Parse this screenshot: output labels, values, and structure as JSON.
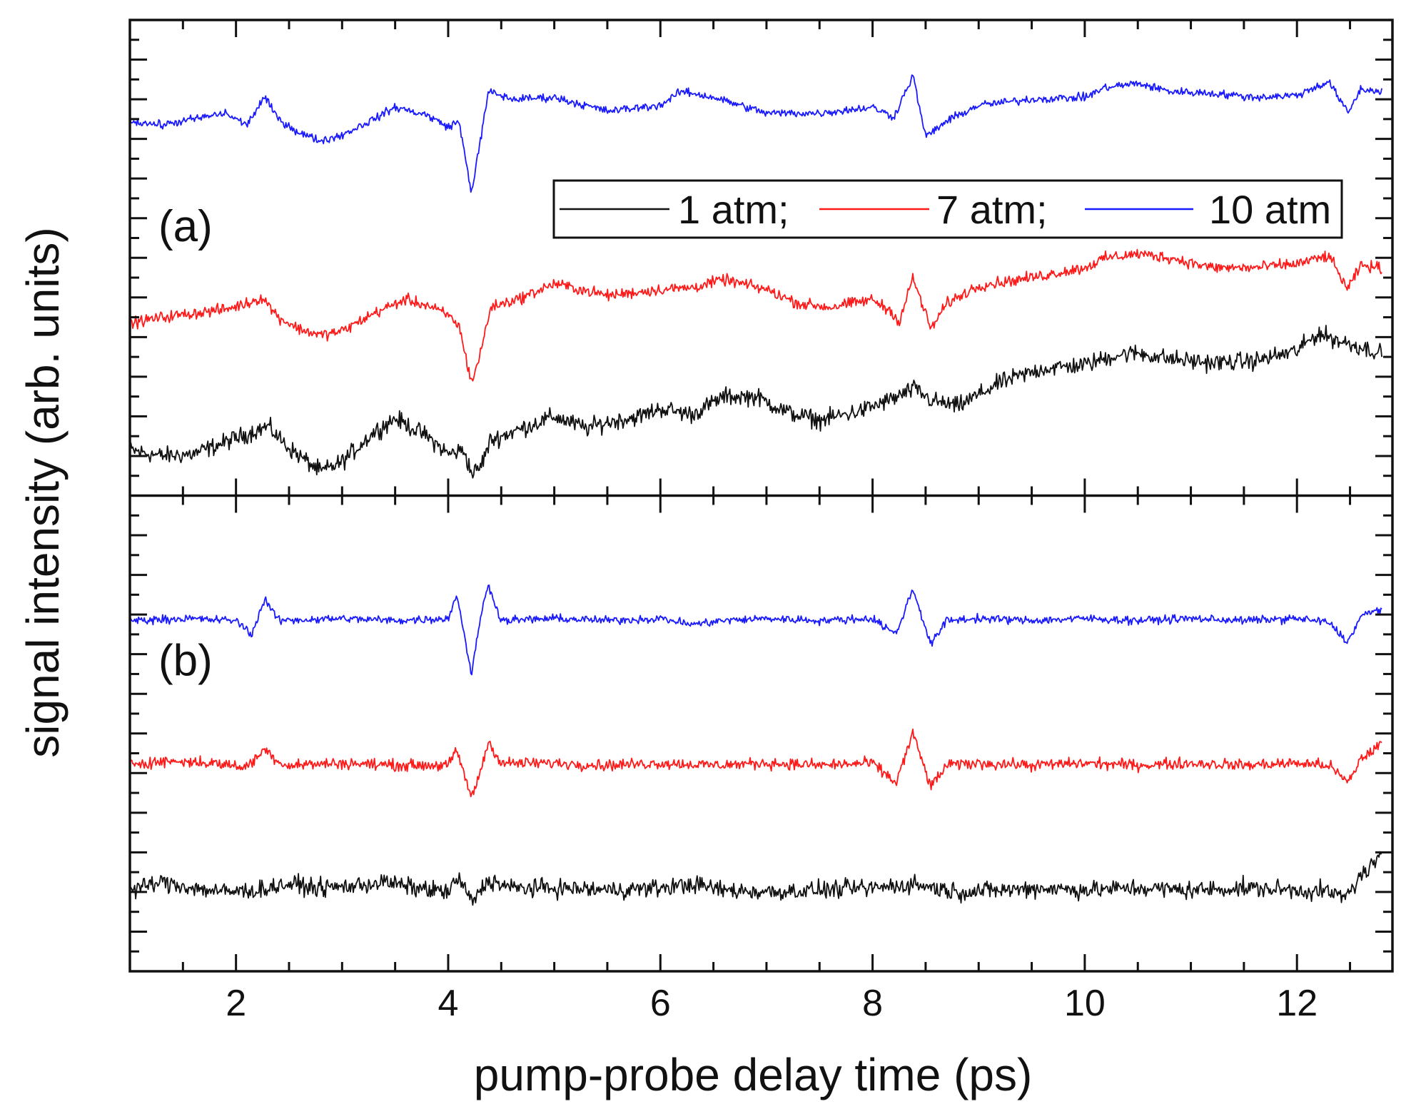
{
  "chart_data": {
    "type": "line",
    "xlabel": "pump-probe delay time (ps)",
    "ylabel": "signal intensity (arb. units)",
    "xlim": [
      1.0,
      12.9
    ],
    "xticks": [
      2,
      4,
      6,
      8,
      10,
      12
    ],
    "xtick_labels": [
      "2",
      "4",
      "6",
      "8",
      "10",
      "12"
    ],
    "ylim": [
      0,
      24
    ],
    "y_tick_labels_shown": false,
    "series_colors": {
      "1 atm": "#111111",
      "7 atm": "#ff1a1a",
      "10 atm": "#1a1aff"
    },
    "legend": {
      "entries": [
        "1 atm;",
        "7 atm;",
        "10 atm"
      ],
      "placement": "top-right of panel (a)"
    },
    "panels": [
      {
        "label": "(a)",
        "ylim": [
          0,
          12
        ],
        "series": [
          {
            "name": "1 atm",
            "points": [
              [
                1.0,
                1.15
              ],
              [
                1.3,
                1.0
              ],
              [
                1.6,
                1.05
              ],
              [
                1.9,
                1.35
              ],
              [
                2.2,
                1.65
              ],
              [
                2.3,
                1.75
              ],
              [
                2.5,
                1.2
              ],
              [
                2.8,
                0.6
              ],
              [
                3.0,
                0.85
              ],
              [
                3.3,
                1.6
              ],
              [
                3.5,
                1.95
              ],
              [
                3.8,
                1.5
              ],
              [
                4.0,
                1.05
              ],
              [
                4.15,
                1.15
              ],
              [
                4.22,
                0.55
              ],
              [
                4.3,
                0.7
              ],
              [
                4.4,
                1.4
              ],
              [
                4.6,
                1.6
              ],
              [
                5.0,
                2.0
              ],
              [
                5.3,
                1.7
              ],
              [
                5.5,
                1.85
              ],
              [
                5.8,
                2.0
              ],
              [
                6.0,
                2.2
              ],
              [
                6.3,
                2.05
              ],
              [
                6.6,
                2.5
              ],
              [
                6.9,
                2.5
              ],
              [
                7.2,
                2.1
              ],
              [
                7.5,
                1.9
              ],
              [
                7.9,
                2.15
              ],
              [
                8.2,
                2.45
              ],
              [
                8.4,
                2.7
              ],
              [
                8.55,
                2.4
              ],
              [
                8.8,
                2.25
              ],
              [
                9.2,
                2.85
              ],
              [
                9.6,
                3.2
              ],
              [
                10.0,
                3.3
              ],
              [
                10.3,
                3.55
              ],
              [
                10.5,
                3.6
              ],
              [
                10.8,
                3.45
              ],
              [
                11.2,
                3.35
              ],
              [
                11.6,
                3.4
              ],
              [
                12.0,
                3.65
              ],
              [
                12.2,
                4.1
              ],
              [
                12.4,
                3.9
              ],
              [
                12.8,
                3.6
              ]
            ]
          },
          {
            "name": "7 atm",
            "points": [
              [
                1.0,
                4.35
              ],
              [
                1.3,
                4.5
              ],
              [
                1.6,
                4.6
              ],
              [
                1.9,
                4.7
              ],
              [
                2.1,
                4.85
              ],
              [
                2.25,
                5.0
              ],
              [
                2.4,
                4.5
              ],
              [
                2.6,
                4.2
              ],
              [
                2.8,
                4.05
              ],
              [
                3.0,
                4.15
              ],
              [
                3.3,
                4.6
              ],
              [
                3.6,
                4.95
              ],
              [
                3.8,
                4.8
              ],
              [
                4.0,
                4.55
              ],
              [
                4.1,
                4.3
              ],
              [
                4.22,
                2.85
              ],
              [
                4.3,
                3.55
              ],
              [
                4.4,
                4.75
              ],
              [
                4.7,
                5.0
              ],
              [
                5.0,
                5.35
              ],
              [
                5.5,
                5.05
              ],
              [
                6.0,
                5.2
              ],
              [
                6.3,
                5.25
              ],
              [
                6.6,
                5.45
              ],
              [
                7.0,
                5.2
              ],
              [
                7.3,
                4.85
              ],
              [
                7.6,
                4.75
              ],
              [
                8.0,
                4.95
              ],
              [
                8.2,
                4.6
              ],
              [
                8.25,
                4.35
              ],
              [
                8.38,
                5.5
              ],
              [
                8.55,
                4.2
              ],
              [
                8.7,
                4.85
              ],
              [
                9.0,
                5.3
              ],
              [
                9.5,
                5.5
              ],
              [
                10.0,
                5.75
              ],
              [
                10.2,
                6.0
              ],
              [
                10.5,
                6.1
              ],
              [
                10.8,
                6.0
              ],
              [
                11.2,
                5.75
              ],
              [
                11.6,
                5.75
              ],
              [
                12.0,
                5.85
              ],
              [
                12.3,
                6.05
              ],
              [
                12.48,
                5.2
              ],
              [
                12.6,
                5.8
              ],
              [
                12.8,
                5.75
              ]
            ]
          },
          {
            "name": "10 atm",
            "points": [
              [
                1.0,
                9.45
              ],
              [
                1.3,
                9.35
              ],
              [
                1.6,
                9.5
              ],
              [
                1.9,
                9.65
              ],
              [
                2.1,
                9.35
              ],
              [
                2.27,
                10.05
              ],
              [
                2.4,
                9.5
              ],
              [
                2.6,
                9.15
              ],
              [
                2.8,
                8.95
              ],
              [
                3.0,
                9.1
              ],
              [
                3.3,
                9.5
              ],
              [
                3.5,
                9.8
              ],
              [
                3.8,
                9.6
              ],
              [
                4.0,
                9.3
              ],
              [
                4.1,
                9.45
              ],
              [
                4.22,
                7.65
              ],
              [
                4.3,
                8.9
              ],
              [
                4.38,
                10.2
              ],
              [
                4.6,
                10.0
              ],
              [
                5.0,
                10.05
              ],
              [
                5.5,
                9.7
              ],
              [
                6.0,
                9.85
              ],
              [
                6.2,
                10.2
              ],
              [
                6.5,
                10.05
              ],
              [
                7.0,
                9.65
              ],
              [
                7.5,
                9.65
              ],
              [
                8.0,
                9.8
              ],
              [
                8.2,
                9.55
              ],
              [
                8.38,
                10.6
              ],
              [
                8.5,
                9.05
              ],
              [
                8.7,
                9.45
              ],
              [
                9.0,
                9.85
              ],
              [
                9.5,
                10.0
              ],
              [
                10.0,
                10.05
              ],
              [
                10.2,
                10.3
              ],
              [
                10.5,
                10.4
              ],
              [
                10.8,
                10.2
              ],
              [
                11.2,
                10.15
              ],
              [
                11.6,
                10.05
              ],
              [
                12.0,
                10.1
              ],
              [
                12.3,
                10.45
              ],
              [
                12.48,
                9.65
              ],
              [
                12.6,
                10.25
              ],
              [
                12.8,
                10.2
              ]
            ]
          }
        ]
      },
      {
        "label": "(b)",
        "ylim": [
          0,
          12
        ],
        "series": [
          {
            "name": "1 atm",
            "points": [
              [
                1.0,
                2.05
              ],
              [
                1.3,
                2.25
              ],
              [
                1.6,
                2.1
              ],
              [
                1.9,
                2.0
              ],
              [
                2.2,
                2.05
              ],
              [
                2.5,
                2.2
              ],
              [
                2.8,
                2.1
              ],
              [
                3.1,
                2.15
              ],
              [
                3.4,
                2.25
              ],
              [
                3.7,
                2.1
              ],
              [
                4.0,
                2.0
              ],
              [
                4.1,
                2.35
              ],
              [
                4.22,
                1.75
              ],
              [
                4.38,
                2.3
              ],
              [
                4.6,
                2.1
              ],
              [
                5.0,
                2.1
              ],
              [
                5.5,
                2.05
              ],
              [
                6.0,
                2.1
              ],
              [
                6.3,
                2.2
              ],
              [
                6.6,
                2.05
              ],
              [
                7.0,
                2.0
              ],
              [
                7.5,
                2.05
              ],
              [
                8.0,
                2.1
              ],
              [
                8.4,
                2.2
              ],
              [
                8.8,
                2.0
              ],
              [
                9.2,
                2.05
              ],
              [
                9.6,
                2.1
              ],
              [
                10.0,
                2.05
              ],
              [
                10.5,
                2.1
              ],
              [
                11.0,
                2.05
              ],
              [
                11.5,
                2.1
              ],
              [
                12.0,
                2.05
              ],
              [
                12.3,
                2.0
              ],
              [
                12.45,
                1.85
              ],
              [
                12.6,
                2.4
              ],
              [
                12.8,
                2.9
              ]
            ]
          },
          {
            "name": "7 atm",
            "points": [
              [
                1.0,
                5.25
              ],
              [
                1.4,
                5.3
              ],
              [
                1.8,
                5.25
              ],
              [
                2.1,
                5.15
              ],
              [
                2.27,
                5.6
              ],
              [
                2.45,
                5.2
              ],
              [
                3.0,
                5.25
              ],
              [
                3.5,
                5.2
              ],
              [
                4.0,
                5.2
              ],
              [
                4.08,
                5.55
              ],
              [
                4.15,
                5.0
              ],
              [
                4.22,
                4.35
              ],
              [
                4.32,
                5.2
              ],
              [
                4.38,
                5.8
              ],
              [
                4.5,
                5.25
              ],
              [
                5.0,
                5.25
              ],
              [
                5.5,
                5.2
              ],
              [
                6.0,
                5.25
              ],
              [
                6.5,
                5.2
              ],
              [
                7.0,
                5.25
              ],
              [
                7.5,
                5.2
              ],
              [
                8.0,
                5.25
              ],
              [
                8.22,
                4.75
              ],
              [
                8.38,
                6.0
              ],
              [
                8.55,
                4.65
              ],
              [
                8.7,
                5.2
              ],
              [
                9.0,
                5.25
              ],
              [
                9.5,
                5.2
              ],
              [
                10.0,
                5.25
              ],
              [
                10.5,
                5.2
              ],
              [
                11.0,
                5.25
              ],
              [
                11.5,
                5.2
              ],
              [
                12.0,
                5.25
              ],
              [
                12.3,
                5.2
              ],
              [
                12.48,
                4.75
              ],
              [
                12.6,
                5.35
              ],
              [
                12.8,
                5.75
              ]
            ]
          },
          {
            "name": "10 atm",
            "points": [
              [
                1.0,
                8.85
              ],
              [
                1.5,
                8.9
              ],
              [
                2.0,
                8.85
              ],
              [
                2.15,
                8.5
              ],
              [
                2.27,
                9.4
              ],
              [
                2.4,
                8.85
              ],
              [
                3.0,
                8.9
              ],
              [
                3.5,
                8.85
              ],
              [
                4.0,
                8.9
              ],
              [
                4.08,
                9.5
              ],
              [
                4.15,
                8.55
              ],
              [
                4.22,
                7.45
              ],
              [
                4.3,
                8.9
              ],
              [
                4.38,
                9.75
              ],
              [
                4.5,
                8.85
              ],
              [
                5.0,
                8.9
              ],
              [
                5.5,
                8.85
              ],
              [
                6.0,
                8.9
              ],
              [
                6.3,
                8.75
              ],
              [
                6.6,
                8.85
              ],
              [
                7.0,
                8.9
              ],
              [
                7.5,
                8.85
              ],
              [
                8.0,
                8.9
              ],
              [
                8.22,
                8.5
              ],
              [
                8.38,
                9.65
              ],
              [
                8.55,
                8.25
              ],
              [
                8.7,
                8.85
              ],
              [
                9.0,
                8.9
              ],
              [
                9.5,
                8.85
              ],
              [
                10.0,
                8.9
              ],
              [
                10.5,
                8.85
              ],
              [
                11.0,
                8.9
              ],
              [
                11.5,
                8.85
              ],
              [
                12.0,
                8.9
              ],
              [
                12.3,
                8.8
              ],
              [
                12.48,
                8.3
              ],
              [
                12.6,
                8.95
              ],
              [
                12.8,
                9.15
              ]
            ]
          }
        ]
      }
    ]
  }
}
